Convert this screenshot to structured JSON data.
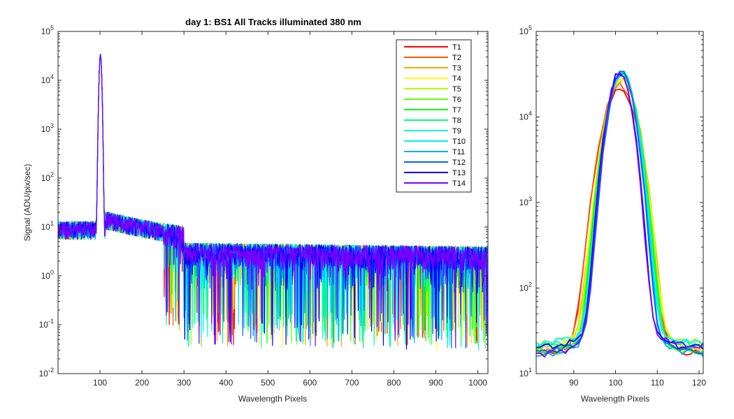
{
  "chart_data": [
    {
      "type": "line",
      "title": "day 1: BS1   All Tracks illuminated   380 nm",
      "xlabel": "Wavelength Pixels",
      "ylabel": "Signal (ADU/pix/sec)",
      "xlim": [
        0,
        1024
      ],
      "ylim": [
        0.01,
        100000
      ],
      "yscale": "log",
      "xticks": [
        "100",
        "200",
        "300",
        "400",
        "500",
        "600",
        "700",
        "800",
        "900",
        "1000"
      ],
      "yticks": [
        {
          "base": "10",
          "exp": "-2"
        },
        {
          "base": "10",
          "exp": "-1"
        },
        {
          "base": "10",
          "exp": "0"
        },
        {
          "base": "10",
          "exp": "1"
        },
        {
          "base": "10",
          "exp": "2"
        },
        {
          "base": "10",
          "exp": "3"
        },
        {
          "base": "10",
          "exp": "4"
        },
        {
          "base": "10",
          "exp": "5"
        }
      ],
      "legend_position": "top-right",
      "grid": false,
      "peak": {
        "x": 101,
        "y": 33000
      },
      "series": [
        {
          "name": "T1",
          "color": "#ff0000"
        },
        {
          "name": "T2",
          "color": "#ff5a00"
        },
        {
          "name": "T3",
          "color": "#ffa500"
        },
        {
          "name": "T4",
          "color": "#ffff00"
        },
        {
          "name": "T5",
          "color": "#b0ff00"
        },
        {
          "name": "T6",
          "color": "#66ff00"
        },
        {
          "name": "T7",
          "color": "#00ff00"
        },
        {
          "name": "T8",
          "color": "#00ff7a"
        },
        {
          "name": "T9",
          "color": "#00ffcc"
        },
        {
          "name": "T10",
          "color": "#00f0ff"
        },
        {
          "name": "T11",
          "color": "#00aaff"
        },
        {
          "name": "T12",
          "color": "#0066ff"
        },
        {
          "name": "T13",
          "color": "#0000ff"
        },
        {
          "name": "T14",
          "color": "#7a00ff"
        }
      ]
    },
    {
      "type": "line",
      "title": "",
      "xlabel": "Wavelength Pixels",
      "ylabel": "",
      "xlim": [
        81,
        121
      ],
      "ylim": [
        10,
        100000
      ],
      "yscale": "log",
      "xticks": [
        "90",
        "100",
        "110",
        "120"
      ],
      "yticks": [
        {
          "base": "10",
          "exp": "1"
        },
        {
          "base": "10",
          "exp": "2"
        },
        {
          "base": "10",
          "exp": "3"
        },
        {
          "base": "10",
          "exp": "4"
        },
        {
          "base": "10",
          "exp": "5"
        }
      ],
      "grid": false,
      "series_peaks": [
        {
          "name": "T1",
          "peak_x": 101,
          "peak_y": 22000
        },
        {
          "name": "T2",
          "peak_x": 101,
          "peak_y": 24000
        },
        {
          "name": "T3",
          "peak_x": 101.5,
          "peak_y": 27000
        },
        {
          "name": "T4",
          "peak_x": 101.5,
          "peak_y": 29000
        },
        {
          "name": "T5",
          "peak_x": 101.5,
          "peak_y": 30000
        },
        {
          "name": "T6",
          "peak_x": 101.5,
          "peak_y": 31000
        },
        {
          "name": "T7",
          "peak_x": 101.5,
          "peak_y": 32000
        },
        {
          "name": "T8",
          "peak_x": 101.5,
          "peak_y": 32500
        },
        {
          "name": "T9",
          "peak_x": 101.5,
          "peak_y": 33000
        },
        {
          "name": "T10",
          "peak_x": 101.5,
          "peak_y": 33000
        },
        {
          "name": "T11",
          "peak_x": 101.5,
          "peak_y": 33500
        },
        {
          "name": "T12",
          "peak_x": 101.5,
          "peak_y": 34000
        },
        {
          "name": "T13",
          "peak_x": 101,
          "peak_y": 34000
        },
        {
          "name": "T14",
          "peak_x": 101,
          "peak_y": 33000
        }
      ],
      "baseline_range": [
        15,
        25
      ]
    }
  ]
}
